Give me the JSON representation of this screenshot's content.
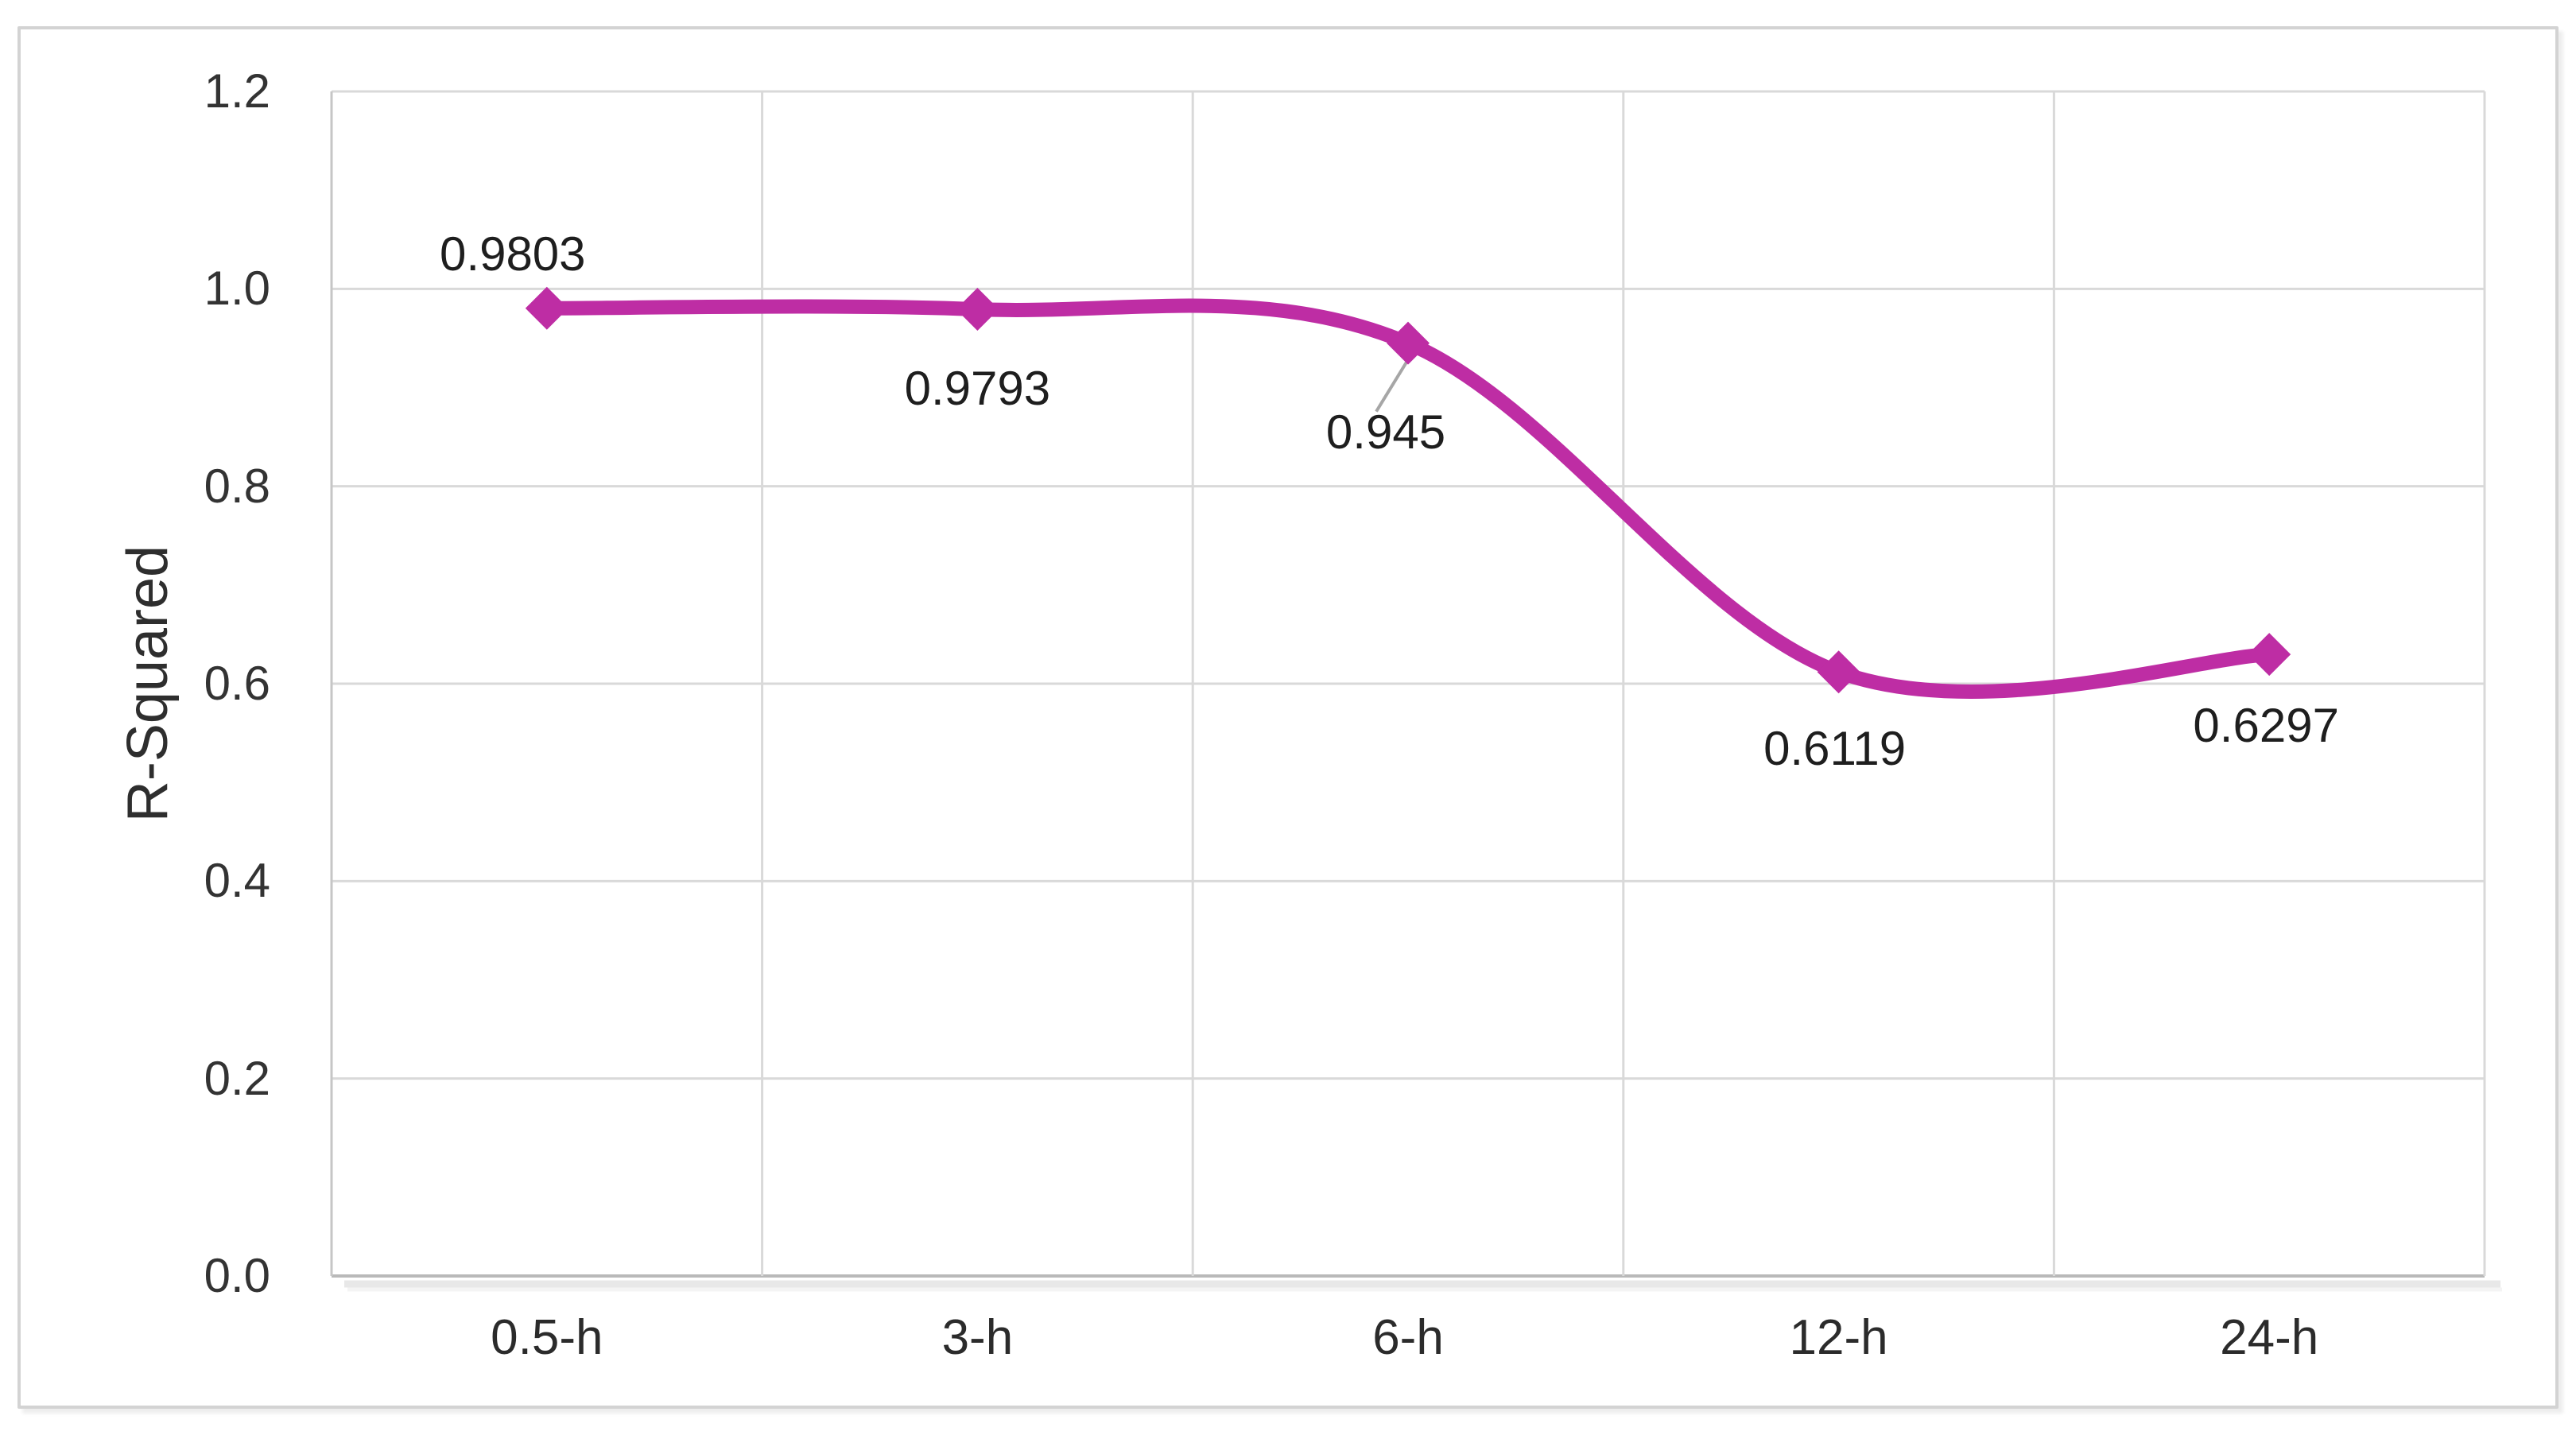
{
  "chart_data": {
    "type": "line",
    "title": "",
    "xlabel": "",
    "ylabel": "R-Squared",
    "categories": [
      "0.5-h",
      "3-h",
      "6-h",
      "12-h",
      "24-h"
    ],
    "series": [
      {
        "name": "R-Squared",
        "values": [
          0.9803,
          0.9793,
          0.945,
          0.6119,
          0.6297
        ],
        "color": "#BE2DA4",
        "marker": "diamond",
        "smooth": true
      }
    ],
    "data_labels": [
      "0.9803",
      "0.9793",
      "0.945",
      "0.6119",
      "0.6297"
    ],
    "ylim": [
      0.0,
      1.2
    ],
    "ytick_step": 0.2,
    "ytick_labels": [
      "0.0",
      "0.2",
      "0.4",
      "0.6",
      "0.8",
      "1.0",
      "1.2"
    ],
    "grid": true,
    "legend": "none",
    "annotations": {
      "leader_line_point": "6-h"
    },
    "colors": {
      "gridline": "#D9D9D9",
      "y_axis_line": "#C6C6C6",
      "x_axis_line": "#B9B9B9",
      "axis_shadow": "#E4E4E4",
      "leader_line": "#A6A6A6",
      "frame_border": "#D3D3D3",
      "background": "#FFFFFF"
    }
  }
}
